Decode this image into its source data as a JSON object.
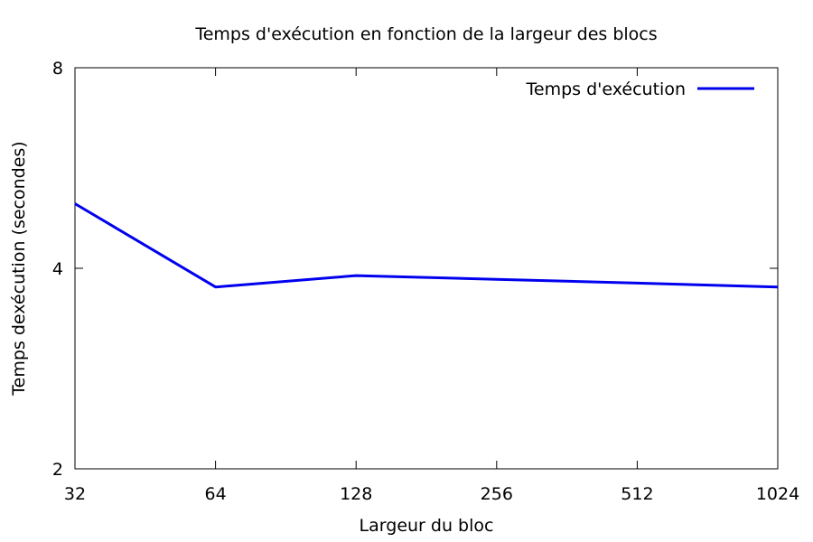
{
  "chart_data": {
    "type": "line",
    "title": "Temps d'exécution  en fonction de la largeur des blocs",
    "xlabel": "Largeur du bloc",
    "ylabel": "Temps dexécution (secondes)",
    "x_scale": "log2",
    "y_scale": "log2",
    "xlim": [
      32,
      1024
    ],
    "ylim": [
      2,
      8
    ],
    "x_ticks": [
      "32",
      "64",
      "128",
      "256",
      "512",
      "1024"
    ],
    "y_ticks": [
      "2",
      "4",
      "8"
    ],
    "grid": false,
    "legend_position": "top-right",
    "series": [
      {
        "name": "Temps d'exécution",
        "color": "#0000ee",
        "x": [
          32,
          64,
          128,
          256,
          512,
          1024
        ],
        "y": [
          5.0,
          3.75,
          3.9,
          3.85,
          3.8,
          3.75
        ]
      }
    ]
  }
}
